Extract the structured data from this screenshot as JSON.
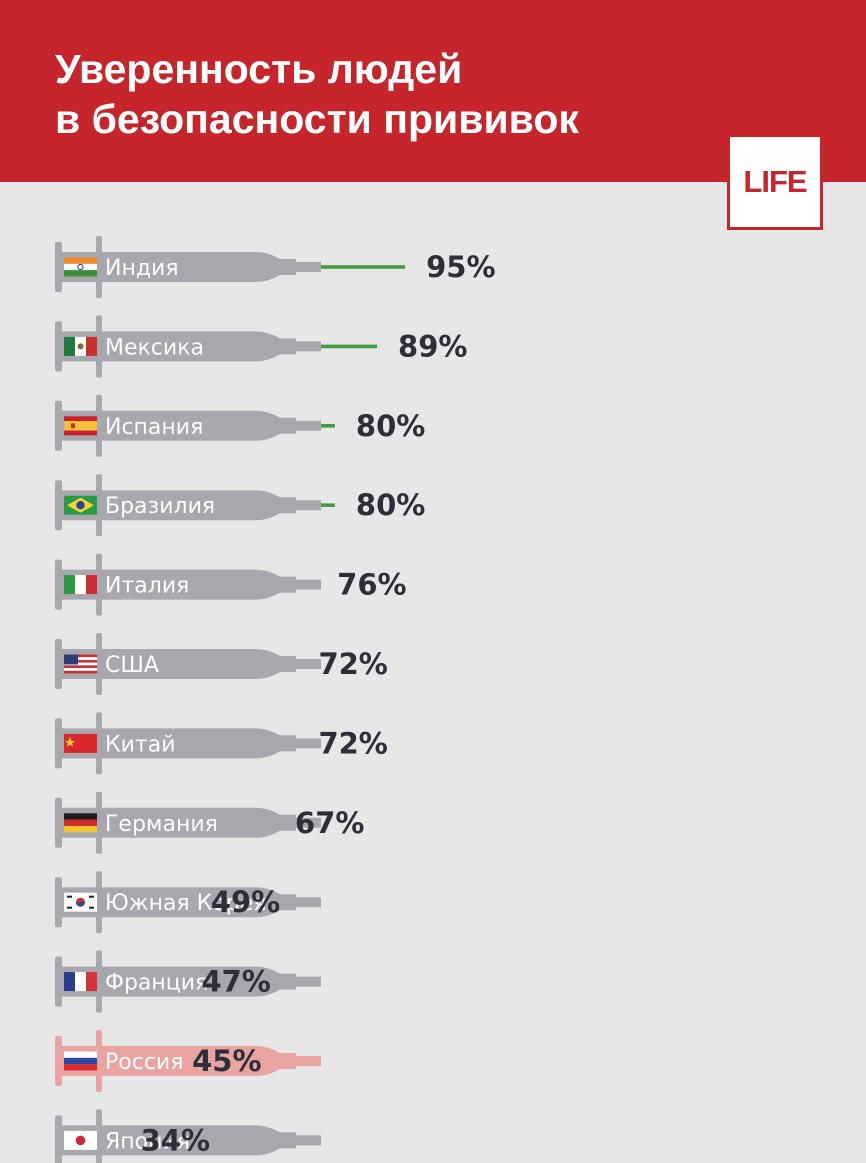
{
  "header": {
    "title_line1": "Уверенность людей",
    "title_line2": "в безопасности прививок",
    "logo_text": "LIFE",
    "bg_color": "#c6262b"
  },
  "colors": {
    "syringe": "#a7a7ad",
    "syringe_highlight": "#e9a4a2",
    "needle": "#3f9d3d",
    "value_text": "#2e2e3a"
  },
  "chart_data": {
    "type": "bar",
    "title": "Уверенность людей в безопасности прививок",
    "unit": "%",
    "highlight": "Россия",
    "categories": [
      "Индия",
      "Мексика",
      "Испания",
      "Бразилия",
      "Италия",
      "США",
      "Китай",
      "Германия",
      "Южная Корея",
      "Франция",
      "Россия",
      "Япония"
    ],
    "values": [
      95,
      89,
      80,
      80,
      76,
      72,
      72,
      67,
      49,
      47,
      45,
      34
    ],
    "value_labels": [
      "95%",
      "89%",
      "80%",
      "80%",
      "76%",
      "72%",
      "72%",
      "67%",
      "49%",
      "47%",
      "45%",
      "34%"
    ],
    "flags": [
      "india-flag-icon",
      "mexico-flag-icon",
      "spain-flag-icon",
      "brazil-flag-icon",
      "italy-flag-icon",
      "usa-flag-icon",
      "china-flag-icon",
      "germany-flag-icon",
      "south-korea-flag-icon",
      "france-flag-icon",
      "russia-flag-icon",
      "japan-flag-icon"
    ]
  }
}
